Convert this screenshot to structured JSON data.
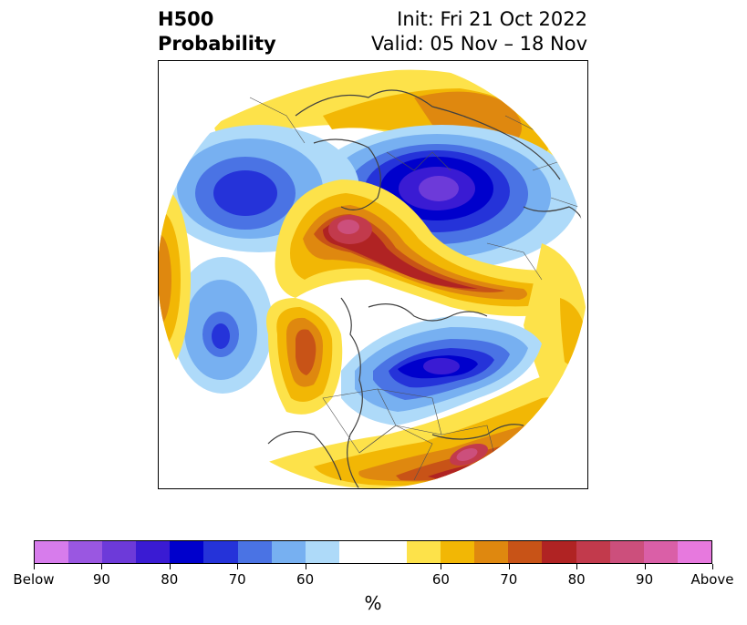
{
  "title": {
    "left_line1": "H500",
    "left_line2": "Probability",
    "right_line1": "Init: Fri 21 Oct 2022",
    "right_line2": "Valid: 05 Nov – 18 Nov"
  },
  "colorbar": {
    "unit": "%",
    "colors": [
      "#d77cec",
      "#9a57e1",
      "#6d3ad9",
      "#3a1bd3",
      "#0000cc",
      "#2533d9",
      "#4a73e4",
      "#77b0f1",
      "#aedaf9",
      "#ffffff",
      "#fde24a",
      "#f2b705",
      "#df880f",
      "#c85317",
      "#b02323",
      "#c23a4c",
      "#cc4f7c",
      "#da5fa7",
      "#e779de"
    ],
    "tick_labels": [
      "Below",
      "90",
      "80",
      "70",
      "60",
      "60",
      "70",
      "80",
      "90",
      "Above"
    ]
  },
  "map": {
    "projection": "polar-stereographic",
    "variable": "H500 probability",
    "features": [
      {
        "type": "below",
        "peak_level": "90",
        "area": "central Russia / Siberia"
      },
      {
        "type": "below",
        "peak_level": "80",
        "area": "eastern Canada / Great Lakes"
      },
      {
        "type": "below",
        "peak_level": "70",
        "area": "eastern Mediterranean / Middle East"
      },
      {
        "type": "below",
        "peak_level": "70",
        "area": "North Pacific"
      },
      {
        "type": "above",
        "peak_level": "90",
        "area": "northeast Africa / Arabia"
      },
      {
        "type": "above",
        "peak_level": "80",
        "area": "western North Atlantic"
      },
      {
        "type": "above",
        "peak_level": "80",
        "area": "Gulf of Alaska / NW Canada"
      },
      {
        "type": "above",
        "peak_level": "70",
        "area": "Siberia to Bering Sea"
      }
    ]
  }
}
